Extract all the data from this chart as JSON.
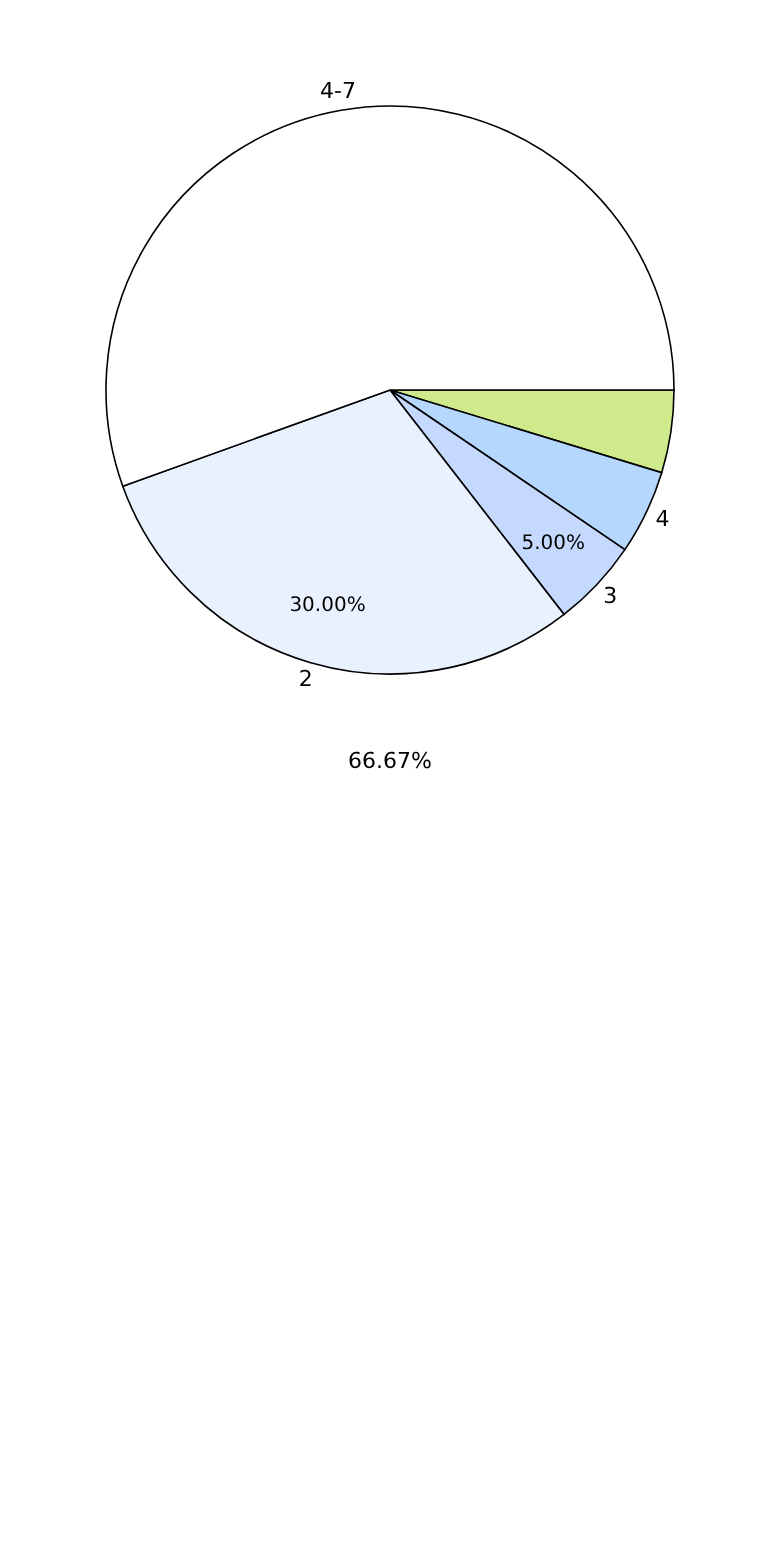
{
  "chart_data": {
    "type": "pie",
    "categories": [
      null,
      "4",
      "3",
      "2",
      "4-7"
    ],
    "values": [
      4.7,
      4.8,
      5,
      30,
      55.5
    ],
    "colors": [
      "#cfea8a",
      "#b5d7fd",
      "#c5d8fd",
      "#eaf1fe",
      "#ffffff"
    ],
    "value_labels": [
      null,
      null,
      "5.00%",
      "30.00%",
      null
    ],
    "annotations": [
      "66.67%"
    ],
    "legend": false
  }
}
